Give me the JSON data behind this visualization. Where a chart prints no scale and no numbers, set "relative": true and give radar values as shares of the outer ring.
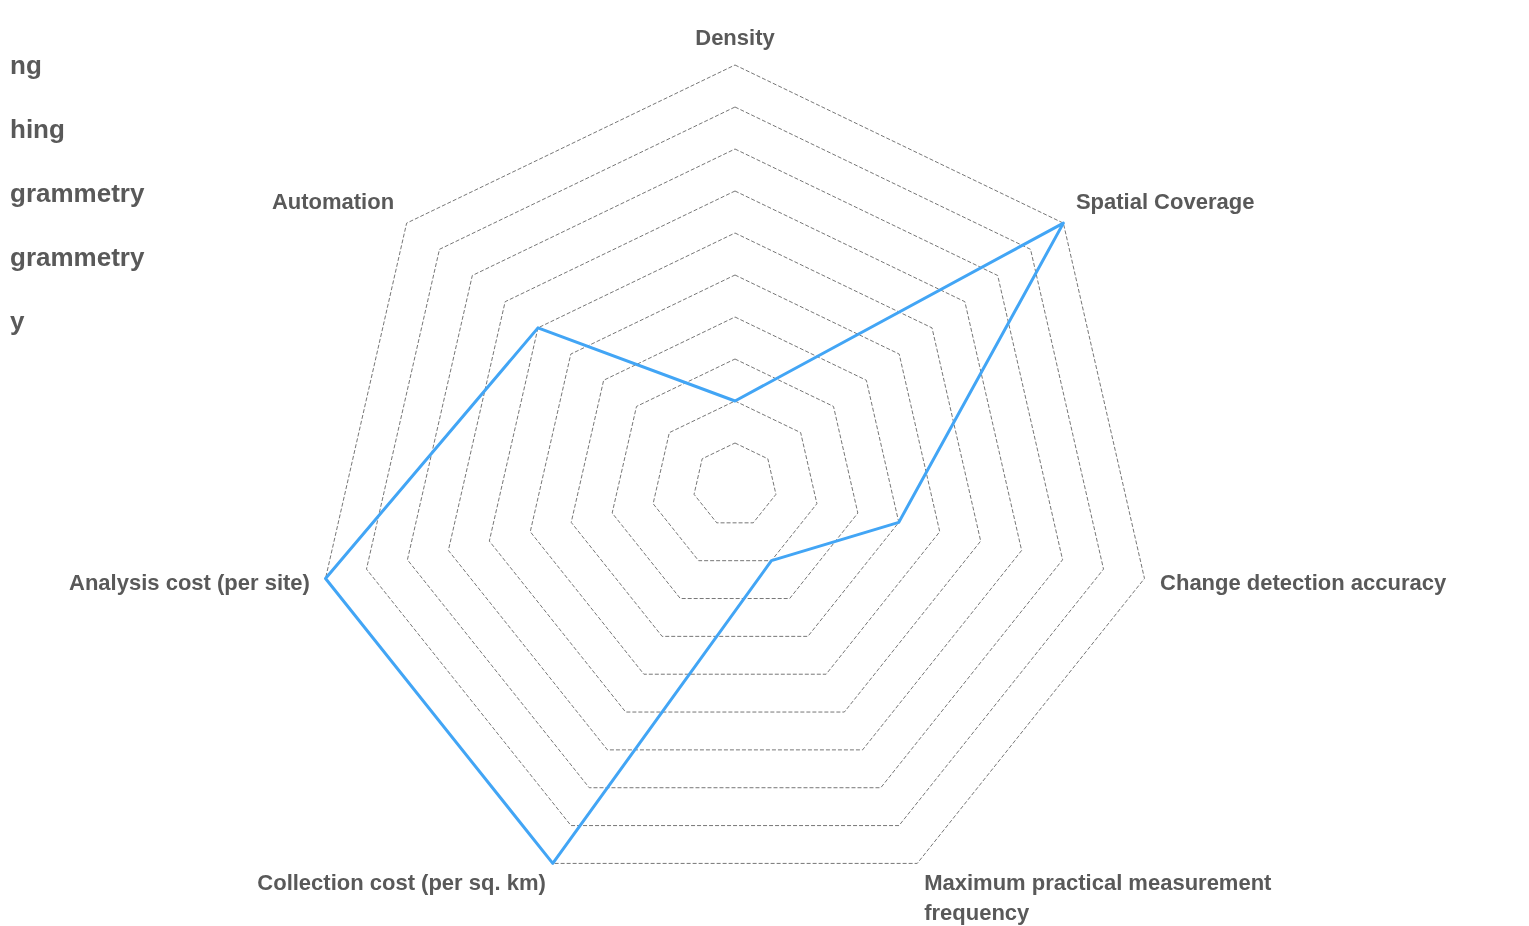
{
  "chart_data": {
    "type": "radar",
    "relative": true,
    "grid": true,
    "categories": [
      "Density",
      "Spatial Coverage",
      "Change detection accuracy",
      "Maximum practical measurement frequency",
      "Collection cost (per sq. km)",
      "Analysis cost (per site)",
      "Automation"
    ],
    "series": [
      {
        "color": "#42a5f5",
        "values": [
          0.2,
          1.0,
          0.4,
          0.2,
          1.0,
          1.0,
          0.6
        ]
      }
    ],
    "annotations": [
      "ng",
      "hing",
      "grammetry",
      "grammetry",
      "y"
    ]
  }
}
